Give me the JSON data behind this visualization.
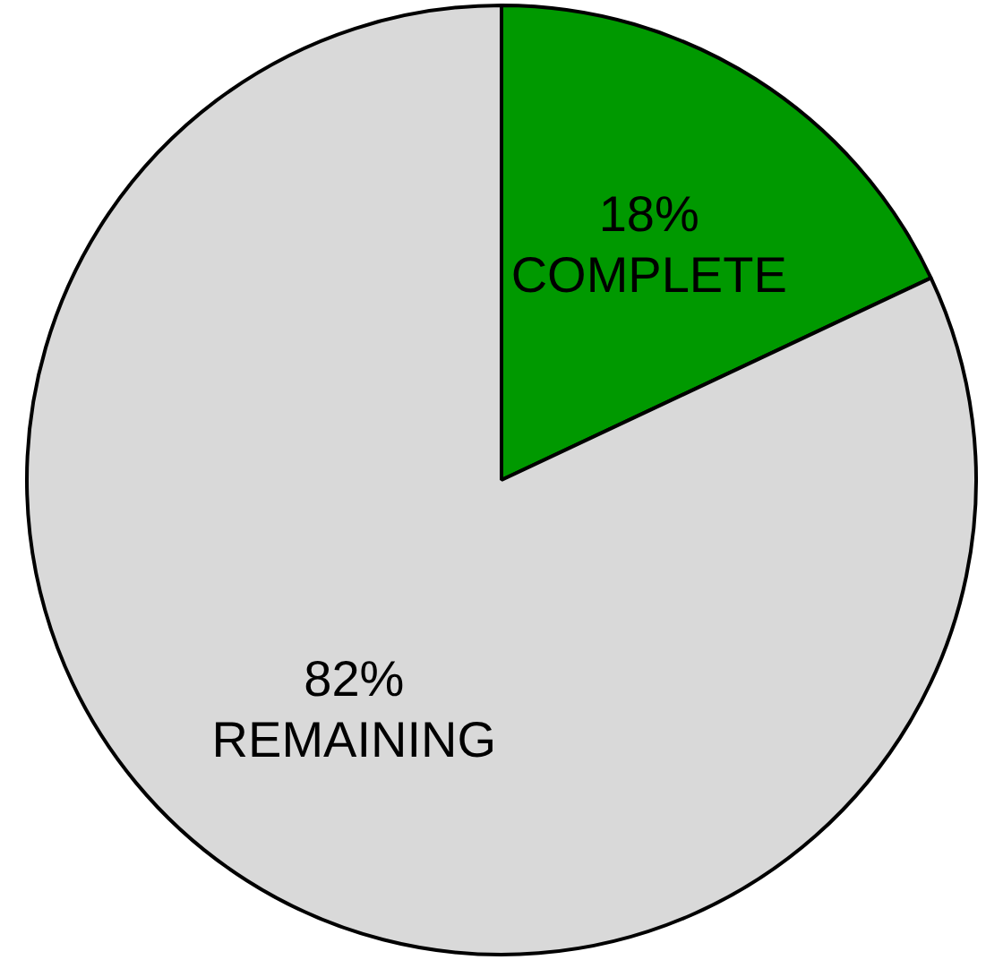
{
  "chart_data": {
    "type": "pie",
    "categories": [
      "COMPLETE",
      "REMAINING"
    ],
    "values": [
      18,
      82
    ],
    "colors": [
      "#009900",
      "#d9d9d9"
    ],
    "value_labels": [
      "18%",
      "82%"
    ]
  }
}
